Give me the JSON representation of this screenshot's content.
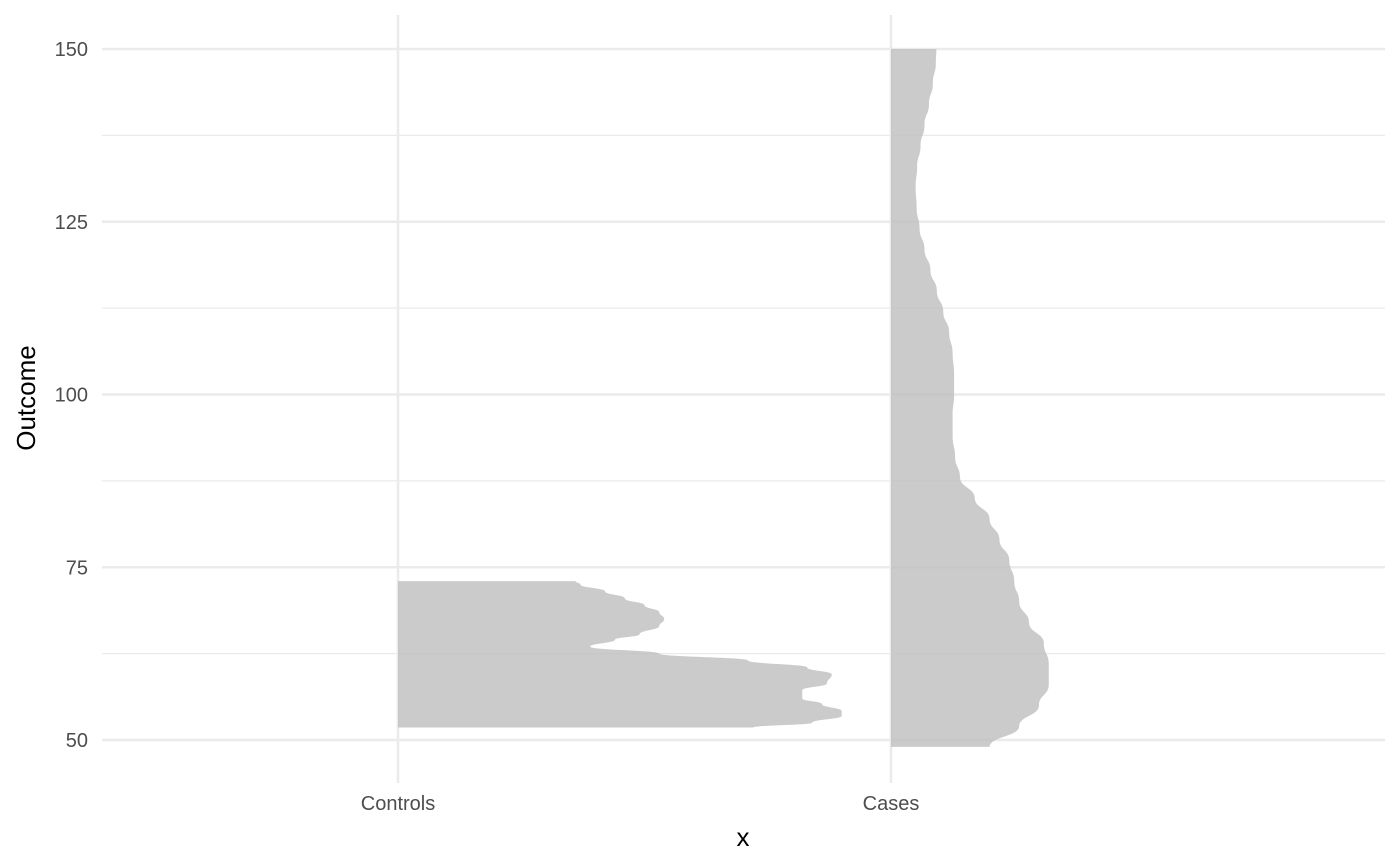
{
  "chart_data": {
    "type": "half-violin",
    "xlabel": "x",
    "ylabel": "Outcome",
    "ylim": [
      45,
      155
    ],
    "y_major_ticks": [
      50,
      75,
      100,
      125,
      150
    ],
    "y_minor_ticks": [
      62.5,
      87.5,
      112.5,
      137.5
    ],
    "categories": [
      "Controls",
      "Cases"
    ],
    "fill_color": "#bebebe",
    "fill_opacity": 0.8,
    "grid": true,
    "legend": "none",
    "series": [
      {
        "category": "Controls",
        "side": "right",
        "range": [
          51.8,
          73.0
        ],
        "density": [
          [
            51.8,
            0.72
          ],
          [
            52.5,
            0.84
          ],
          [
            53.5,
            0.9
          ],
          [
            54.2,
            0.9
          ],
          [
            55.2,
            0.86
          ],
          [
            56.0,
            0.82
          ],
          [
            57.2,
            0.82
          ],
          [
            58.2,
            0.87
          ],
          [
            59.5,
            0.88
          ],
          [
            60.5,
            0.83
          ],
          [
            61.5,
            0.71
          ],
          [
            62.5,
            0.53
          ],
          [
            63.5,
            0.39
          ],
          [
            64.5,
            0.44
          ],
          [
            65.3,
            0.49
          ],
          [
            66.5,
            0.53
          ],
          [
            67.5,
            0.54
          ],
          [
            68.5,
            0.53
          ],
          [
            69.5,
            0.5
          ],
          [
            70.5,
            0.46
          ],
          [
            71.5,
            0.42
          ],
          [
            72.5,
            0.37
          ],
          [
            73.0,
            0.36
          ]
        ]
      },
      {
        "category": "Cases",
        "side": "right",
        "range": [
          49.0,
          150.0
        ],
        "density": [
          [
            49.0,
            0.2
          ],
          [
            52.0,
            0.26
          ],
          [
            55.0,
            0.3
          ],
          [
            58.0,
            0.32
          ],
          [
            61.0,
            0.32
          ],
          [
            64.0,
            0.31
          ],
          [
            67.0,
            0.28
          ],
          [
            70.0,
            0.26
          ],
          [
            73.0,
            0.25
          ],
          [
            76.0,
            0.24
          ],
          [
            79.0,
            0.22
          ],
          [
            82.0,
            0.2
          ],
          [
            85.0,
            0.17
          ],
          [
            88.0,
            0.14
          ],
          [
            91.0,
            0.13
          ],
          [
            94.0,
            0.125
          ],
          [
            97.0,
            0.125
          ],
          [
            100.0,
            0.128
          ],
          [
            103.0,
            0.128
          ],
          [
            106.0,
            0.125
          ],
          [
            109.0,
            0.118
          ],
          [
            112.0,
            0.106
          ],
          [
            115.0,
            0.093
          ],
          [
            118.0,
            0.08
          ],
          [
            121.0,
            0.068
          ],
          [
            124.0,
            0.058
          ],
          [
            127.0,
            0.052
          ],
          [
            130.0,
            0.05
          ],
          [
            133.0,
            0.053
          ],
          [
            136.0,
            0.06
          ],
          [
            139.0,
            0.068
          ],
          [
            142.0,
            0.077
          ],
          [
            145.0,
            0.085
          ],
          [
            148.0,
            0.091
          ],
          [
            150.0,
            0.092
          ]
        ]
      }
    ]
  }
}
